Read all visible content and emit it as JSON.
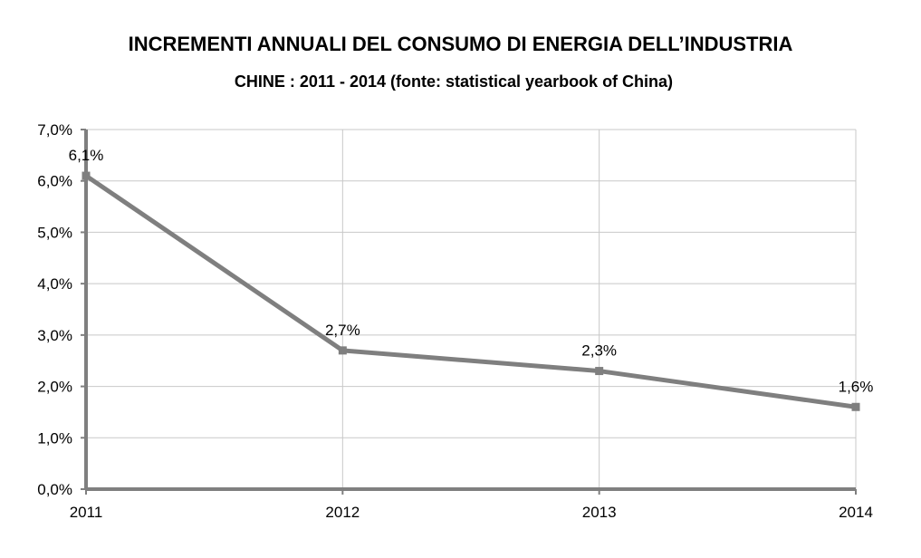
{
  "chart_data": {
    "type": "line",
    "title": "INCREMENTI ANNUALI DEL CONSUMO DI ENERGIA DELL’INDUSTRIA",
    "subtitle": "CHINE : 2011 - 2014 (fonte: statistical yearbook of China)",
    "xlabel": "",
    "ylabel": "",
    "categories": [
      "2011",
      "2012",
      "2013",
      "2014"
    ],
    "series": [
      {
        "values": [
          6.1,
          2.7,
          2.3,
          1.6
        ],
        "data_labels": [
          "6,1%",
          "2,7%",
          "2,3%",
          "1,6%"
        ],
        "color": "#7f7f7f"
      }
    ],
    "ylim": [
      0,
      7
    ],
    "yticks": [
      "0,0%",
      "1,0%",
      "2,0%",
      "3,0%",
      "4,0%",
      "5,0%",
      "6,0%",
      "7,0%"
    ],
    "grid": true,
    "legend": "none",
    "colors": {
      "line": "#7f7f7f",
      "axis": "#7f7f7f",
      "grid": "#c8c8c8"
    }
  }
}
